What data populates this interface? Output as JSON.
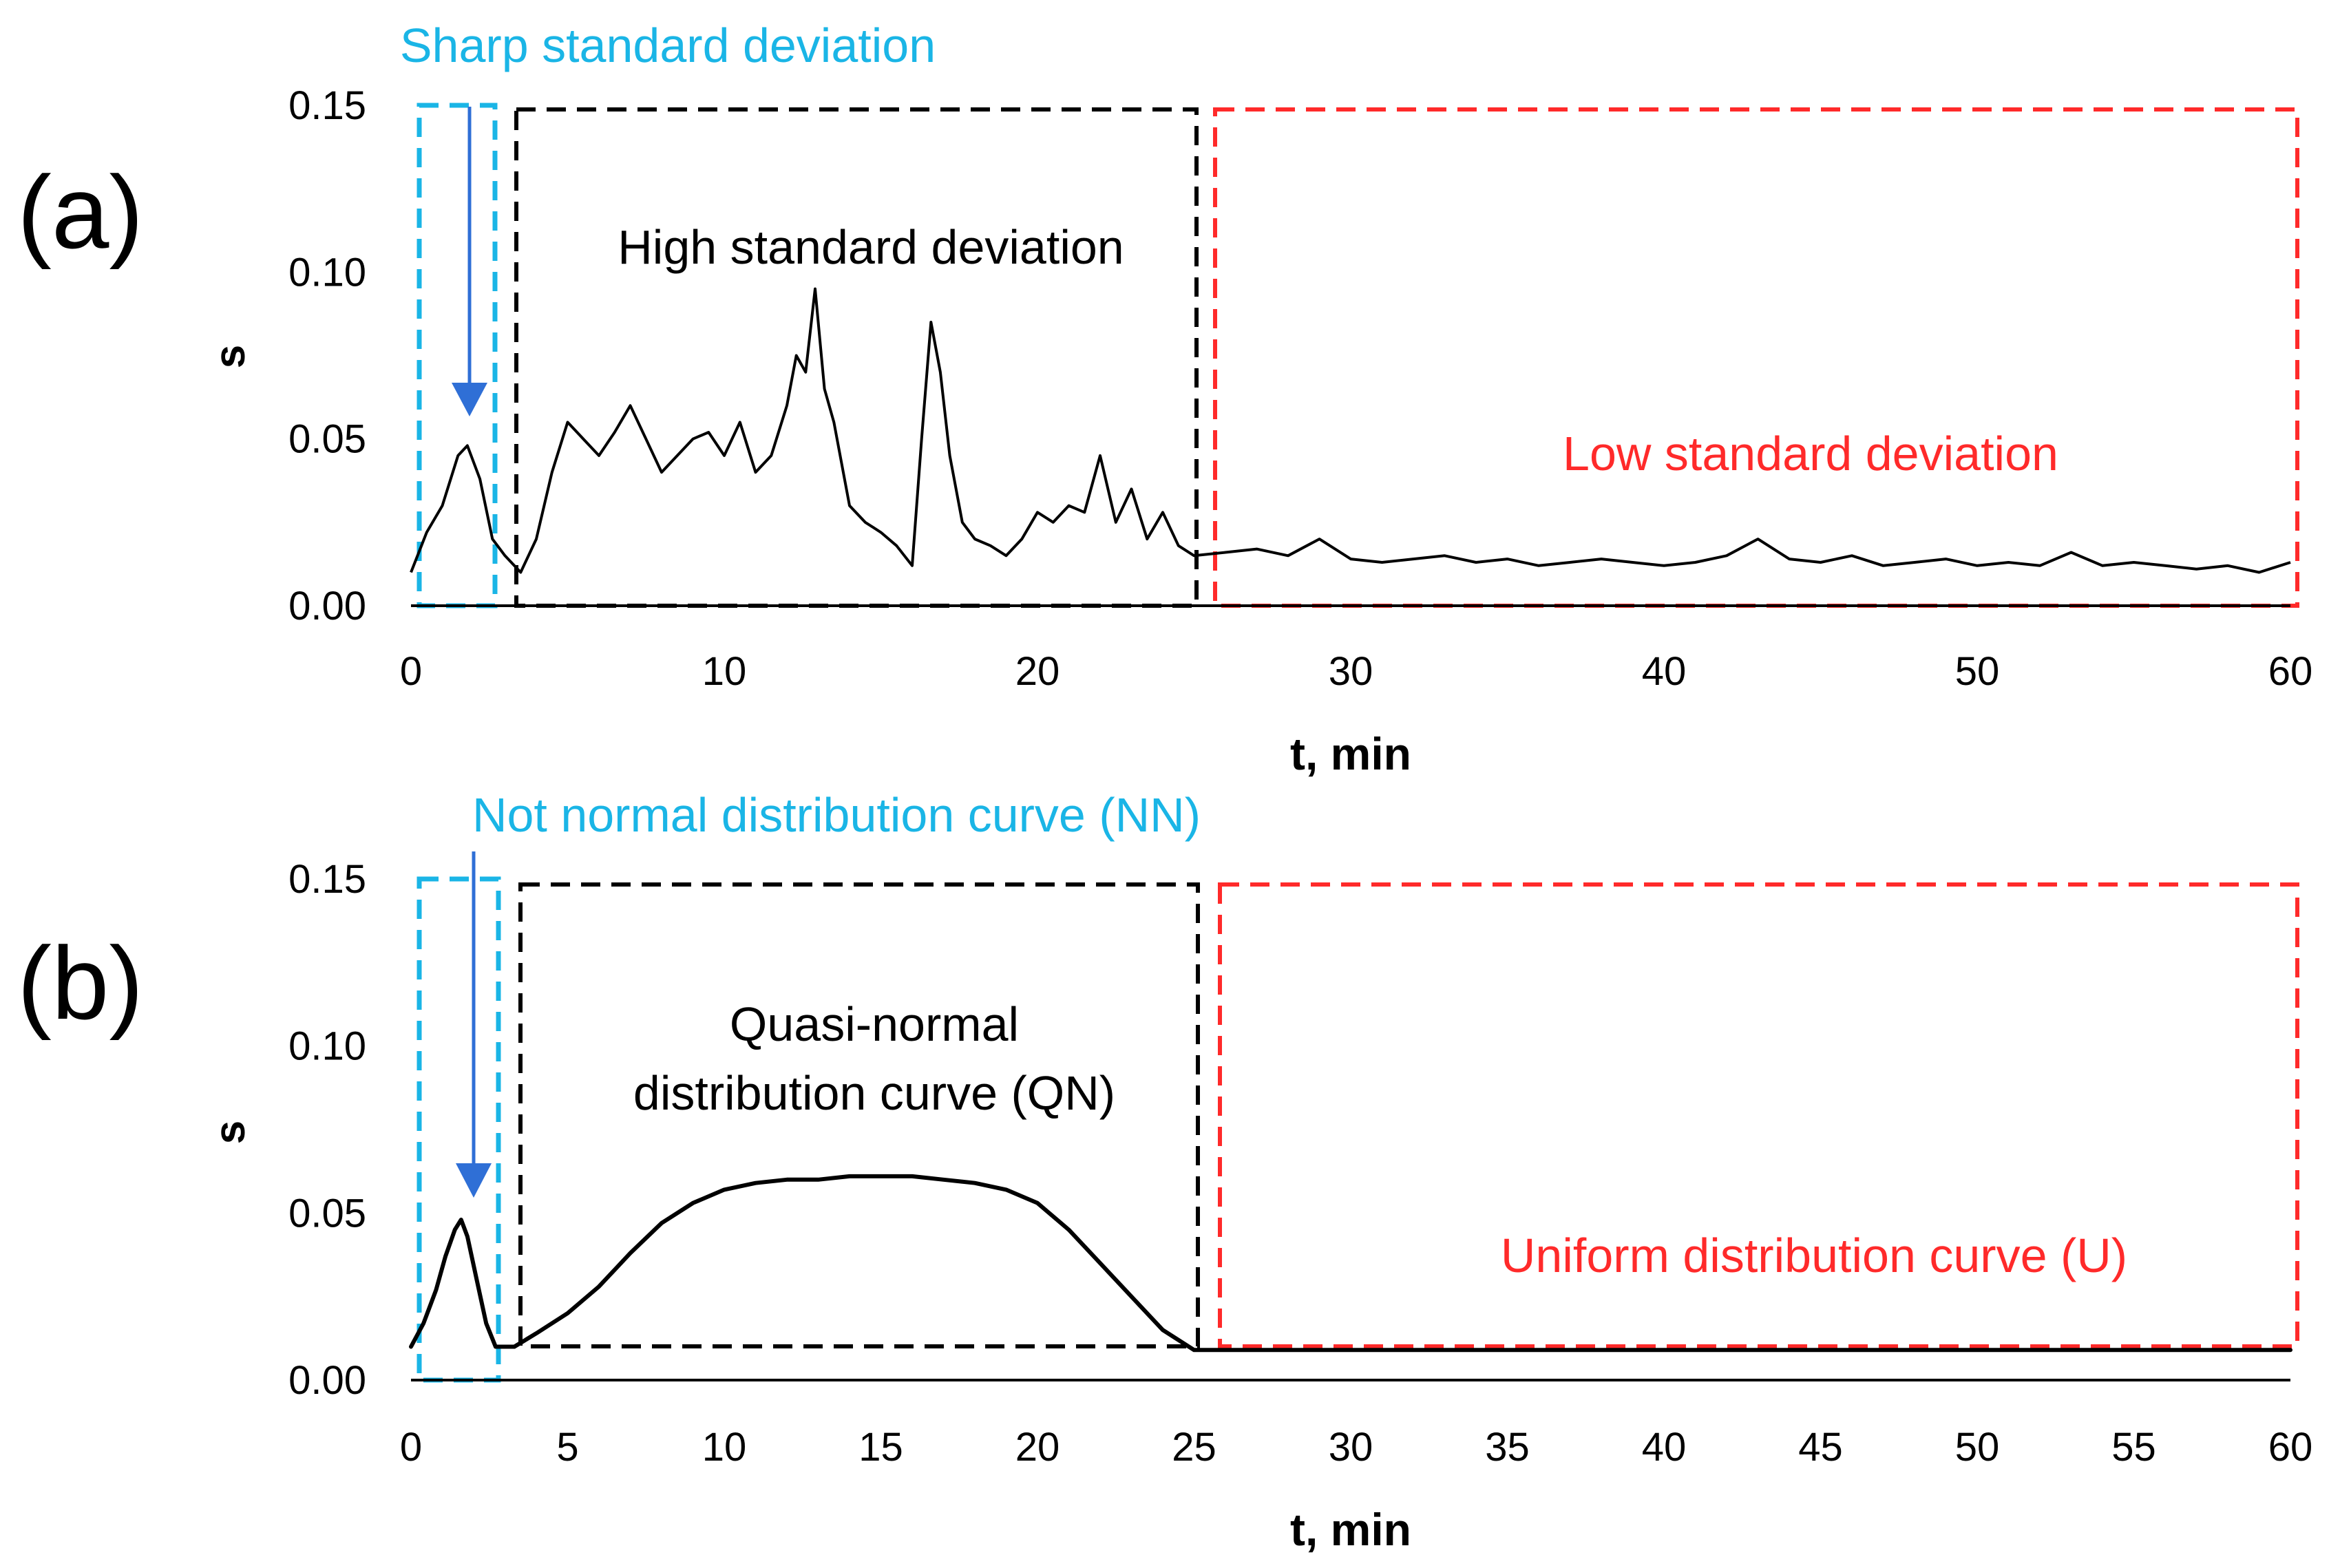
{
  "chart_data": [
    {
      "type": "line",
      "panel_label": "(a)",
      "xlabel": "t, min",
      "ylabel": "s",
      "xlim": [
        0,
        60
      ],
      "ylim": [
        0,
        0.15
      ],
      "x_ticks": [
        "0",
        "10",
        "20",
        "30",
        "40",
        "50",
        "60"
      ],
      "y_ticks": [
        "0.00",
        "0.05",
        "0.10",
        "0.15"
      ],
      "grid": false,
      "series": [
        {
          "line_color": "#000000",
          "x": [
            0,
            0.5,
            1,
            1.5,
            1.8,
            2.2,
            2.6,
            3,
            3.5,
            4,
            4.5,
            5,
            5.5,
            6,
            6.5,
            7,
            7.5,
            8,
            8.5,
            9,
            9.5,
            10,
            10.5,
            11,
            11.5,
            12,
            12.3,
            12.6,
            12.9,
            13.2,
            13.5,
            14,
            14.5,
            15,
            15.5,
            16,
            16.3,
            16.6,
            16.9,
            17.2,
            17.6,
            18,
            18.5,
            19,
            19.5,
            20,
            20.5,
            21,
            21.5,
            22,
            22.5,
            23,
            23.5,
            24,
            24.5,
            25,
            26,
            27,
            28,
            29,
            30,
            31,
            32,
            33,
            34,
            35,
            36,
            37,
            38,
            39,
            40,
            41,
            42,
            43,
            44,
            45,
            46,
            47,
            48,
            49,
            50,
            51,
            52,
            53,
            54,
            55,
            56,
            57,
            58,
            59,
            60
          ],
          "y": [
            0.01,
            0.022,
            0.03,
            0.045,
            0.048,
            0.038,
            0.02,
            0.015,
            0.01,
            0.02,
            0.04,
            0.055,
            0.05,
            0.045,
            0.052,
            0.06,
            0.05,
            0.04,
            0.045,
            0.05,
            0.052,
            0.045,
            0.055,
            0.04,
            0.045,
            0.06,
            0.075,
            0.07,
            0.095,
            0.065,
            0.055,
            0.03,
            0.025,
            0.022,
            0.018,
            0.012,
            0.05,
            0.085,
            0.07,
            0.045,
            0.025,
            0.02,
            0.018,
            0.015,
            0.02,
            0.028,
            0.025,
            0.03,
            0.028,
            0.045,
            0.025,
            0.035,
            0.02,
            0.028,
            0.018,
            0.015,
            0.016,
            0.017,
            0.015,
            0.02,
            0.014,
            0.013,
            0.014,
            0.015,
            0.013,
            0.014,
            0.012,
            0.013,
            0.014,
            0.013,
            0.012,
            0.013,
            0.015,
            0.02,
            0.014,
            0.013,
            0.015,
            0.012,
            0.013,
            0.014,
            0.012,
            0.013,
            0.012,
            0.016,
            0.012,
            0.013,
            0.012,
            0.011,
            0.012,
            0.01,
            0.013
          ]
        }
      ],
      "annotations": {
        "nn_region": {
          "text": "Sharp standard deviation",
          "color": "#1ab5e6",
          "x_range": [
            0.1,
            2.6
          ]
        },
        "qn_region": {
          "text": "High standard deviation",
          "color": "#000000",
          "x_range": [
            3.3,
            25.0
          ]
        },
        "u_region": {
          "text": "Low standard deviation",
          "color": "#ff2a2a",
          "x_range": [
            25.6,
            60
          ]
        }
      },
      "arrow_color": "#2f6fd6"
    },
    {
      "type": "line",
      "panel_label": "(b)",
      "xlabel": "t, min",
      "ylabel": "s",
      "xlim": [
        0,
        60
      ],
      "ylim": [
        0,
        0.15
      ],
      "x_ticks": [
        "0",
        "5",
        "10",
        "15",
        "20",
        "25",
        "30",
        "35",
        "40",
        "45",
        "50",
        "55",
        "60"
      ],
      "y_ticks": [
        "0.00",
        "0.05",
        "0.10",
        "0.15"
      ],
      "grid": false,
      "series": [
        {
          "line_color": "#000000",
          "x": [
            0,
            0.4,
            0.8,
            1.1,
            1.4,
            1.6,
            1.8,
            2.1,
            2.4,
            2.7,
            3.3,
            4,
            5,
            6,
            7,
            8,
            9,
            10,
            11,
            12,
            13,
            14,
            15,
            16,
            17,
            18,
            19,
            20,
            21,
            22,
            23,
            24,
            25,
            25.6,
            30,
            35,
            40,
            45,
            50,
            55,
            60
          ],
          "y": [
            0.01,
            0.017,
            0.027,
            0.037,
            0.045,
            0.048,
            0.043,
            0.03,
            0.017,
            0.01,
            0.01,
            0.014,
            0.02,
            0.028,
            0.038,
            0.047,
            0.053,
            0.057,
            0.059,
            0.06,
            0.06,
            0.061,
            0.061,
            0.061,
            0.06,
            0.059,
            0.057,
            0.053,
            0.045,
            0.035,
            0.025,
            0.015,
            0.009,
            0.009,
            0.009,
            0.009,
            0.009,
            0.009,
            0.009,
            0.009,
            0.009
          ]
        }
      ],
      "annotations": {
        "nn_region": {
          "text": "Not normal distribution curve (NN)",
          "color": "#1ab5e6",
          "x_range": [
            0.1,
            2.6
          ]
        },
        "qn_region": {
          "text_line1": "Quasi-normal",
          "text_line2": "distribution curve (QN)",
          "color": "#000000",
          "x_range": [
            3.3,
            25.0
          ]
        },
        "u_region": {
          "text": "Uniform distribution curve (U)",
          "color": "#ff2a2a",
          "x_range": [
            25.6,
            60
          ]
        }
      },
      "arrow_color": "#2f6fd6"
    }
  ]
}
